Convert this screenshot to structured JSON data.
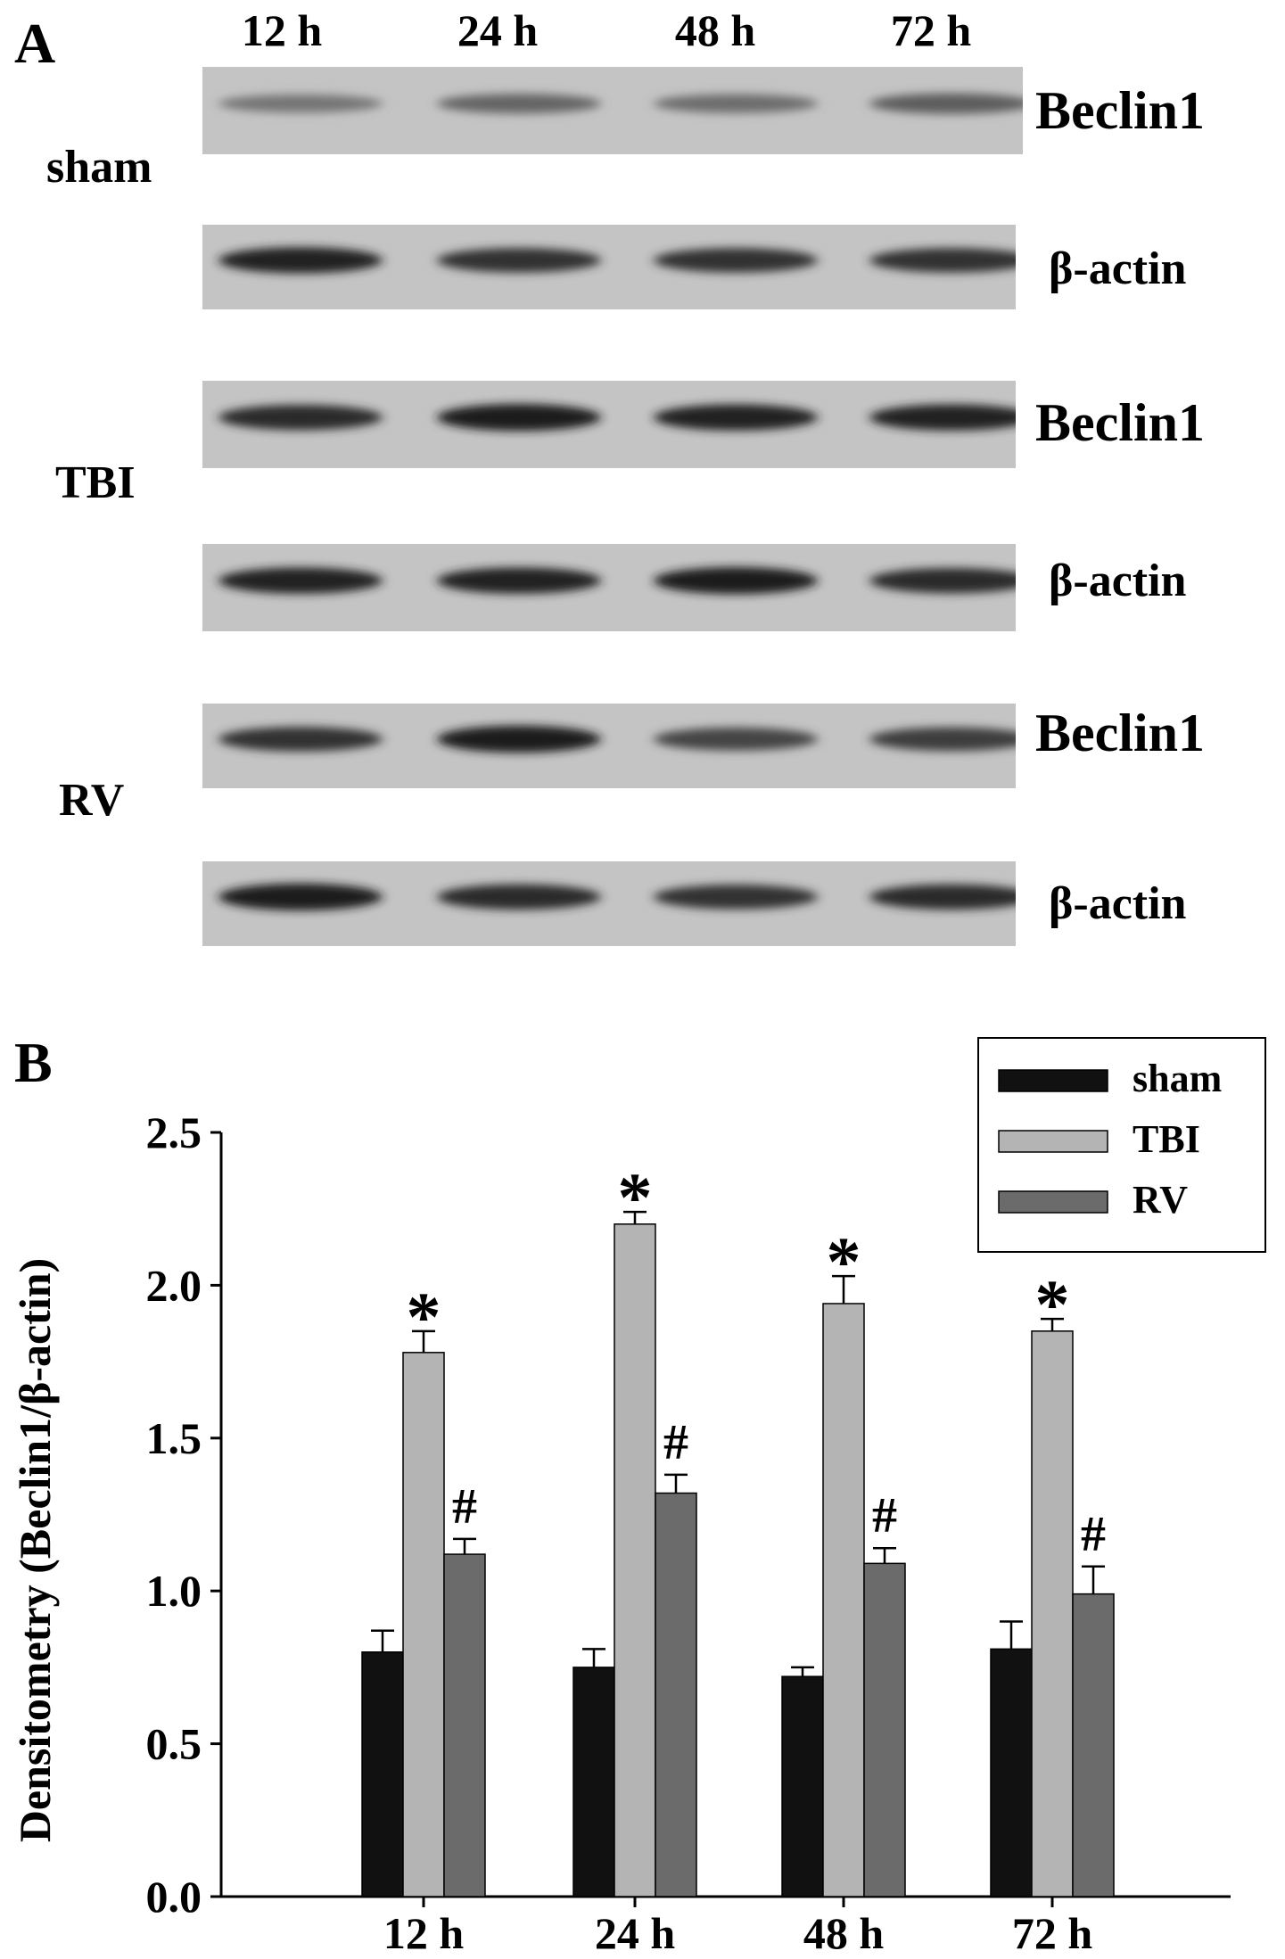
{
  "panel_a": {
    "letter": "A",
    "lanes": [
      "12 h",
      "24 h",
      "48 h",
      "72 h"
    ],
    "groups": [
      {
        "name": "sham",
        "blots": [
          {
            "protein": "Beclin1",
            "intensities": [
              0.35,
              0.45,
              0.4,
              0.5
            ]
          },
          {
            "protein": "β-actin",
            "intensities": [
              0.85,
              0.75,
              0.75,
              0.75
            ]
          }
        ]
      },
      {
        "name": "TBI",
        "blots": [
          {
            "protein": "Beclin1",
            "intensities": [
              0.8,
              0.9,
              0.85,
              0.85
            ]
          },
          {
            "protein": "β-actin",
            "intensities": [
              0.85,
              0.85,
              0.9,
              0.8
            ]
          }
        ]
      },
      {
        "name": "RV",
        "blots": [
          {
            "protein": "Beclin1",
            "intensities": [
              0.75,
              0.9,
              0.65,
              0.7
            ]
          },
          {
            "protein": "β-actin",
            "intensities": [
              0.9,
              0.8,
              0.75,
              0.8
            ]
          }
        ]
      }
    ]
  },
  "panel_b": {
    "letter": "B"
  },
  "chart_data": {
    "type": "bar",
    "categories": [
      "12 h",
      "24 h",
      "48 h",
      "72 h"
    ],
    "series": [
      {
        "name": "sham",
        "color": "#111111",
        "values": [
          0.8,
          0.75,
          0.72,
          0.81
        ],
        "errors": [
          0.07,
          0.06,
          0.03,
          0.09
        ],
        "markers": [
          "",
          "",
          "",
          ""
        ]
      },
      {
        "name": "TBI",
        "color": "#b4b4b4",
        "values": [
          1.78,
          2.2,
          1.94,
          1.85
        ],
        "errors": [
          0.07,
          0.04,
          0.09,
          0.04
        ],
        "markers": [
          "*",
          "*",
          "*",
          "*"
        ]
      },
      {
        "name": "RV",
        "color": "#6b6b6b",
        "values": [
          1.12,
          1.32,
          1.09,
          0.99
        ],
        "errors": [
          0.05,
          0.06,
          0.05,
          0.09
        ],
        "markers": [
          "#",
          "#",
          "#",
          "#"
        ]
      }
    ],
    "ylabel": "Densitometry (Beclin1/β-actin)",
    "xlabel": "",
    "ylim": [
      0,
      2.5
    ],
    "yticks": [
      "0.0",
      "0.5",
      "1.0",
      "1.5",
      "2.0",
      "2.5"
    ],
    "grid": false,
    "legend_position": "top-right"
  }
}
